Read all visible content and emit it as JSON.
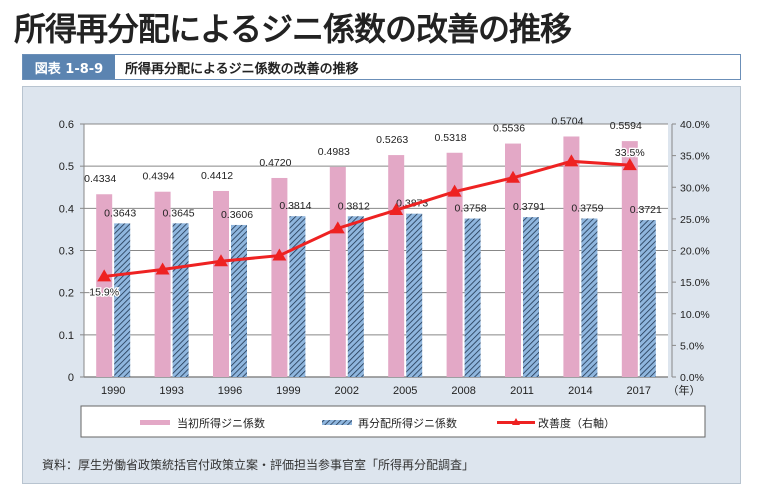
{
  "page": {
    "title": "所得再分配によるジニ係数の改善の推移"
  },
  "figure": {
    "number": "図表 1-8-9",
    "title": "所得再分配によるジニ係数の改善の推移",
    "source": "資料：厚生労働省政策統括官付政策立案・評価担当参事官室「所得再分配調査」"
  },
  "colors": {
    "initial": "#e3a8c6",
    "redistributed": "#8fb6de",
    "redistributed_hatch": "#1f3550",
    "improvement": "#ee2222",
    "panel": "#dde5ee"
  },
  "chart_data": {
    "type": "bar",
    "title": "所得再分配によるジニ係数の改善の推移",
    "xlabel": "（年）",
    "ylabel": "",
    "y2label": "",
    "categories": [
      "1990",
      "1993",
      "1996",
      "1999",
      "2002",
      "2005",
      "2008",
      "2011",
      "2014",
      "2017"
    ],
    "ylim": [
      0,
      0.6
    ],
    "yticks": [
      "0",
      "0.1",
      "0.2",
      "0.3",
      "0.4",
      "0.5",
      "0.6"
    ],
    "y2lim": [
      0,
      40
    ],
    "y2ticks": [
      "0.0%",
      "5.0%",
      "10.0%",
      "15.0%",
      "20.0%",
      "25.0%",
      "30.0%",
      "35.0%",
      "40.0%"
    ],
    "grid": true,
    "legend_position": "bottom",
    "series": [
      {
        "name": "当初所得ジニ係数",
        "type": "bar",
        "axis": "left",
        "values": [
          0.4334,
          0.4394,
          0.4412,
          0.472,
          0.4983,
          0.5263,
          0.5318,
          0.5536,
          0.5704,
          0.5594
        ],
        "labels": [
          "0.4334",
          "0.4394",
          "0.4412",
          "0.4720",
          "0.4983",
          "0.5263",
          "0.5318",
          "0.5536",
          "0.5704",
          "0.5594"
        ]
      },
      {
        "name": "再分配所得ジニ係数",
        "type": "bar",
        "axis": "left",
        "pattern": "hatched",
        "values": [
          0.3643,
          0.3645,
          0.3606,
          0.3814,
          0.3812,
          0.3873,
          0.3758,
          0.3791,
          0.3759,
          0.3721
        ],
        "labels": [
          "0.3643",
          "0.3645",
          "0.3606",
          "0.3814",
          "0.3812",
          "0.3873",
          "0.3758",
          "0.3791",
          "0.3759",
          "0.3721"
        ]
      },
      {
        "name": "改善度（右軸）",
        "type": "line",
        "axis": "right",
        "marker": "triangle",
        "values": [
          15.9,
          17.0,
          18.3,
          19.2,
          23.5,
          26.4,
          29.3,
          31.5,
          34.1,
          33.5
        ],
        "point_labels": {
          "0": "15.9%",
          "9": "33.5%"
        }
      }
    ]
  }
}
